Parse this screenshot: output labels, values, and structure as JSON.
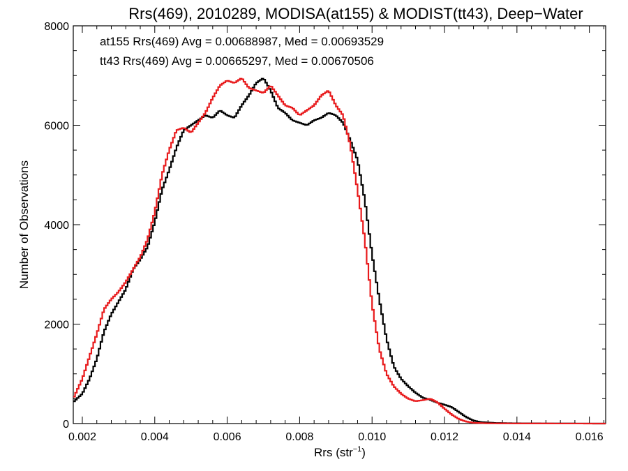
{
  "chart_data": {
    "type": "line",
    "title": "Rrs(469), 2010289, MODISA(at155) & MODIST(tt43), Deep−Water",
    "xlabel": "Rrs (str",
    "xlabel_sup": "−1",
    "xlabel_close": ")",
    "ylabel": "Number of Observations",
    "xlim": [
      0.00175,
      0.01645
    ],
    "ylim": [
      0,
      8000
    ],
    "xticks": [
      0.002,
      0.004,
      0.006,
      0.008,
      0.01,
      0.012,
      0.014,
      0.016
    ],
    "xtick_labels": [
      "0.002",
      "0.004",
      "0.006",
      "0.008",
      "0.010",
      "0.012",
      "0.014",
      "0.016"
    ],
    "yticks": [
      0,
      2000,
      4000,
      6000,
      8000
    ],
    "ytick_labels": [
      "0",
      "2000",
      "4000",
      "6000",
      "8000"
    ],
    "step": "histogram",
    "bin_width": 5e-05,
    "series": [
      {
        "legend": "at155 Rrs(469) Avg = 0.00688987, Med = 0.00693529",
        "color": "#000000",
        "points": [
          [
            0.00175,
            430
          ],
          [
            0.002,
            600
          ],
          [
            0.0022,
            900
          ],
          [
            0.0024,
            1300
          ],
          [
            0.0026,
            1850
          ],
          [
            0.0028,
            2200
          ],
          [
            0.003,
            2450
          ],
          [
            0.0032,
            2700
          ],
          [
            0.0034,
            3100
          ],
          [
            0.0036,
            3300
          ],
          [
            0.0038,
            3550
          ],
          [
            0.004,
            4050
          ],
          [
            0.0042,
            4700
          ],
          [
            0.0044,
            5100
          ],
          [
            0.0046,
            5550
          ],
          [
            0.0048,
            5900
          ],
          [
            0.005,
            6000
          ],
          [
            0.0052,
            6100
          ],
          [
            0.0054,
            6200
          ],
          [
            0.0056,
            6150
          ],
          [
            0.0058,
            6300
          ],
          [
            0.006,
            6200
          ],
          [
            0.0062,
            6150
          ],
          [
            0.0064,
            6400
          ],
          [
            0.0066,
            6600
          ],
          [
            0.0068,
            6850
          ],
          [
            0.007,
            6950
          ],
          [
            0.0072,
            6700
          ],
          [
            0.0074,
            6350
          ],
          [
            0.0076,
            6250
          ],
          [
            0.0078,
            6100
          ],
          [
            0.008,
            6050
          ],
          [
            0.0082,
            6000
          ],
          [
            0.0084,
            6100
          ],
          [
            0.0086,
            6150
          ],
          [
            0.0088,
            6250
          ],
          [
            0.009,
            6200
          ],
          [
            0.0092,
            6050
          ],
          [
            0.0094,
            5700
          ],
          [
            0.0096,
            5300
          ],
          [
            0.0098,
            4500
          ],
          [
            0.01,
            3400
          ],
          [
            0.0102,
            2500
          ],
          [
            0.0104,
            1700
          ],
          [
            0.0106,
            1150
          ],
          [
            0.0108,
            900
          ],
          [
            0.011,
            750
          ],
          [
            0.0112,
            620
          ],
          [
            0.0114,
            520
          ],
          [
            0.0116,
            480
          ],
          [
            0.0118,
            420
          ],
          [
            0.012,
            380
          ],
          [
            0.0122,
            330
          ],
          [
            0.0124,
            230
          ],
          [
            0.0126,
            130
          ],
          [
            0.0128,
            60
          ],
          [
            0.013,
            30
          ],
          [
            0.0134,
            12
          ],
          [
            0.014,
            5
          ],
          [
            0.015,
            2
          ],
          [
            0.01645,
            0
          ]
        ]
      },
      {
        "legend": "tt43 Rrs(469) Avg = 0.00665297, Med = 0.00670506",
        "color": "#e8191b",
        "points": [
          [
            0.00175,
            500
          ],
          [
            0.002,
            900
          ],
          [
            0.0022,
            1350
          ],
          [
            0.0024,
            1800
          ],
          [
            0.0026,
            2300
          ],
          [
            0.0028,
            2500
          ],
          [
            0.003,
            2650
          ],
          [
            0.0032,
            2850
          ],
          [
            0.0034,
            3100
          ],
          [
            0.0036,
            3350
          ],
          [
            0.0038,
            3700
          ],
          [
            0.004,
            4250
          ],
          [
            0.0042,
            5000
          ],
          [
            0.0044,
            5500
          ],
          [
            0.0046,
            5900
          ],
          [
            0.0048,
            5950
          ],
          [
            0.005,
            5850
          ],
          [
            0.0052,
            6050
          ],
          [
            0.0054,
            6250
          ],
          [
            0.0056,
            6550
          ],
          [
            0.0058,
            6800
          ],
          [
            0.006,
            6900
          ],
          [
            0.0062,
            6850
          ],
          [
            0.0064,
            6950
          ],
          [
            0.0066,
            6750
          ],
          [
            0.0068,
            6700
          ],
          [
            0.007,
            6650
          ],
          [
            0.0072,
            6800
          ],
          [
            0.0074,
            6600
          ],
          [
            0.0076,
            6400
          ],
          [
            0.0078,
            6350
          ],
          [
            0.008,
            6200
          ],
          [
            0.0082,
            6300
          ],
          [
            0.0084,
            6400
          ],
          [
            0.0086,
            6600
          ],
          [
            0.0088,
            6700
          ],
          [
            0.009,
            6400
          ],
          [
            0.0092,
            6200
          ],
          [
            0.0094,
            5600
          ],
          [
            0.0096,
            4700
          ],
          [
            0.0098,
            3700
          ],
          [
            0.01,
            2400
          ],
          [
            0.0102,
            1500
          ],
          [
            0.0104,
            1000
          ],
          [
            0.0106,
            750
          ],
          [
            0.0108,
            600
          ],
          [
            0.011,
            500
          ],
          [
            0.0112,
            450
          ],
          [
            0.0114,
            470
          ],
          [
            0.0116,
            500
          ],
          [
            0.0118,
            430
          ],
          [
            0.012,
            300
          ],
          [
            0.0122,
            180
          ],
          [
            0.0124,
            90
          ],
          [
            0.0126,
            40
          ],
          [
            0.0128,
            15
          ],
          [
            0.0132,
            5
          ],
          [
            0.014,
            2
          ],
          [
            0.01645,
            0
          ]
        ]
      }
    ]
  }
}
